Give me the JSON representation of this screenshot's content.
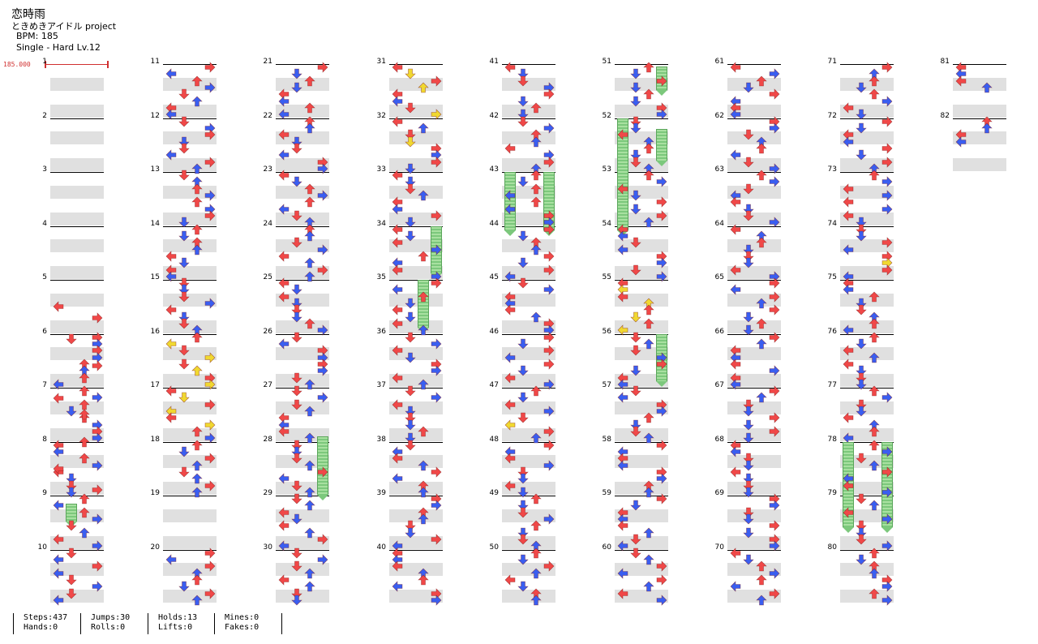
{
  "song": {
    "title": "恋時雨",
    "artist": "ときめきアイドル project",
    "bpm_label": "BPM: 185",
    "difficulty": "Single - Hard  Lv.12",
    "bpm_marker": "185.000"
  },
  "colors": {
    "red_arrow": "#f04848",
    "blue_arrow": "#3a5ef0",
    "yellow_arrow": "#f0d830",
    "hold_green": "#88d888",
    "band_gray": "#e0e0e0"
  },
  "measures": [
    "1",
    "2",
    "3",
    "4",
    "5",
    "6",
    "7",
    "8",
    "9",
    "10",
    "11",
    "12",
    "13",
    "14",
    "15",
    "16",
    "17",
    "18",
    "19",
    "20",
    "21",
    "22",
    "23",
    "24",
    "25",
    "26",
    "27",
    "28",
    "29",
    "30",
    "31",
    "32",
    "33",
    "34",
    "35",
    "36",
    "37",
    "38",
    "39",
    "40",
    "41",
    "42",
    "43",
    "44",
    "45",
    "46",
    "47",
    "48",
    "49",
    "50",
    "51",
    "52",
    "53",
    "54",
    "55",
    "56",
    "57",
    "58",
    "59",
    "60",
    "61",
    "62",
    "63",
    "64",
    "65",
    "66",
    "67",
    "68",
    "69",
    "70",
    "71",
    "72",
    "73",
    "74",
    "75",
    "76",
    "77",
    "78",
    "79",
    "80",
    "81",
    "82"
  ],
  "stats": {
    "steps": "Steps:437",
    "hands": "Hands:0",
    "jumps": "Jumps:30",
    "rolls": "Rolls:0",
    "holds": "Holds:13",
    "lifts": "Lifts:0",
    "mines": "Mines:0",
    "fakes": "Fakes:0"
  }
}
